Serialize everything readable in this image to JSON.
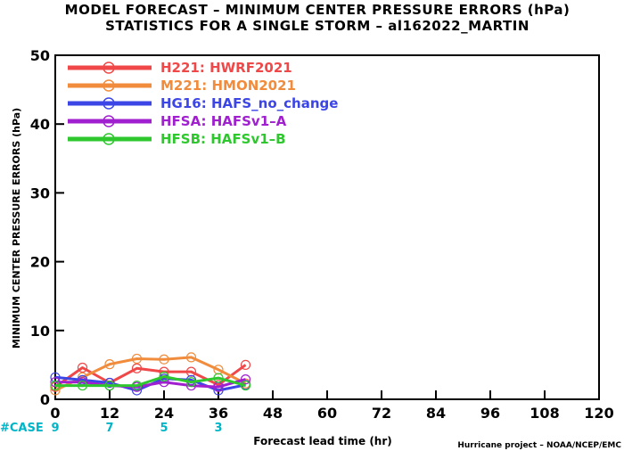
{
  "colors": {
    "background": "#ffffff",
    "axis": "#000000",
    "cases": "#00b5c8"
  },
  "chart_data": {
    "type": "line",
    "title": "MODEL FORECAST – MINIMUM CENTER PRESSURE ERRORS (hPa)",
    "subtitle": "STATISTICS FOR A SINGLE STORM – al162022_MARTIN",
    "xlabel": "Forecast lead time (hr)",
    "ylabel": "MINIMUM CENTER PRESSURE ERRORS (hPa)",
    "xlim": [
      0,
      120
    ],
    "ylim": [
      0,
      50
    ],
    "x_ticks": [
      "0",
      "12",
      "24",
      "36",
      "48",
      "60",
      "72",
      "84",
      "96",
      "108",
      "120"
    ],
    "y_ticks": [
      "0",
      "10",
      "20",
      "30",
      "40",
      "50"
    ],
    "grid": false,
    "legend_position": "top-left",
    "credit": "Hurricane project – NOAA/NCEP/EMC",
    "cases_label": "#CASE",
    "cases": [
      {
        "x": 0,
        "label": "9"
      },
      {
        "x": 12,
        "label": "7"
      },
      {
        "x": 24,
        "label": "5"
      },
      {
        "x": 36,
        "label": "3"
      }
    ],
    "series": [
      {
        "name": "H221: HWRF2021",
        "color": "#f04848",
        "points": [
          [
            0,
            1.8
          ],
          [
            6,
            4.6
          ],
          [
            12,
            2.4
          ],
          [
            18,
            4.5
          ],
          [
            24,
            4.0
          ],
          [
            30,
            4.0
          ],
          [
            36,
            2.1
          ],
          [
            42,
            5.0
          ]
        ]
      },
      {
        "name": "M221: HMON2021",
        "color": "#f08c3c",
        "points": [
          [
            0,
            1.3
          ],
          [
            6,
            3.2
          ],
          [
            12,
            5.1
          ],
          [
            18,
            5.9
          ],
          [
            24,
            5.8
          ],
          [
            30,
            6.1
          ],
          [
            36,
            4.3
          ],
          [
            42,
            2.3
          ]
        ]
      },
      {
        "name": "HG16: HAFS_no_change",
        "color": "#3c46e6",
        "points": [
          [
            0,
            3.2
          ],
          [
            6,
            2.8
          ],
          [
            12,
            2.4
          ],
          [
            18,
            1.3
          ],
          [
            24,
            3.0
          ],
          [
            30,
            2.8
          ],
          [
            36,
            1.3
          ],
          [
            42,
            2.1
          ]
        ]
      },
      {
        "name": "HFSA: HAFSv1–A",
        "color": "#a020d0",
        "points": [
          [
            0,
            2.5
          ],
          [
            6,
            2.5
          ],
          [
            12,
            2.0
          ],
          [
            18,
            1.8
          ],
          [
            24,
            2.5
          ],
          [
            30,
            2.0
          ],
          [
            36,
            1.8
          ],
          [
            42,
            2.9
          ]
        ]
      },
      {
        "name": "HFSB: HAFSv1–B",
        "color": "#2ec82e",
        "points": [
          [
            0,
            2.0
          ],
          [
            6,
            2.0
          ],
          [
            12,
            2.0
          ],
          [
            18,
            2.0
          ],
          [
            24,
            3.3
          ],
          [
            30,
            2.5
          ],
          [
            36,
            3.1
          ],
          [
            42,
            2.0
          ]
        ]
      }
    ]
  }
}
